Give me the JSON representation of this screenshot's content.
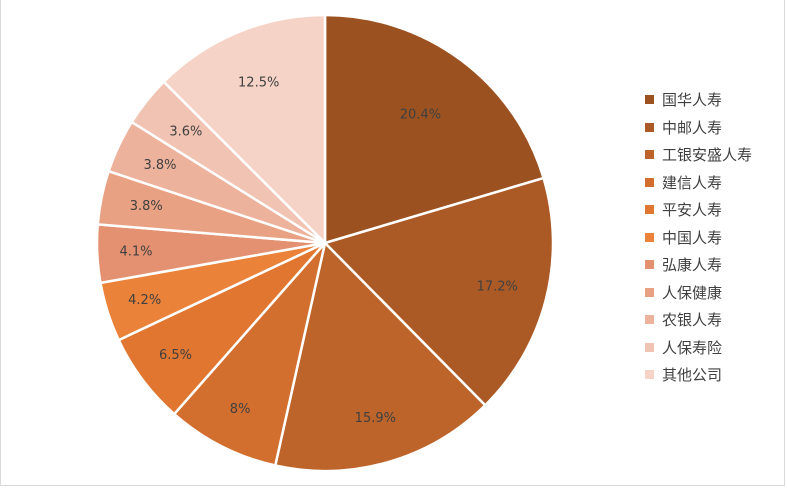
{
  "chart_data": {
    "type": "pie",
    "title": "",
    "start_angle_deg": 0,
    "direction": "clockwise",
    "legend_position": "right",
    "slices": [
      {
        "name": "国华人寿",
        "value": 20.4,
        "label": "20.4%",
        "color": "#9C5220"
      },
      {
        "name": "中邮人寿",
        "value": 17.2,
        "label": "17.2%",
        "color": "#AC5A25"
      },
      {
        "name": "工银安盛人寿",
        "value": 15.9,
        "label": "15.9%",
        "color": "#BC6429"
      },
      {
        "name": "建信人寿",
        "value": 8,
        "label": "8%",
        "color": "#D26F2E"
      },
      {
        "name": "平安人寿",
        "value": 6.5,
        "label": "6.5%",
        "color": "#E07630"
      },
      {
        "name": "中国人寿",
        "value": 4.2,
        "label": "4.2%",
        "color": "#EA8239"
      },
      {
        "name": "弘康人寿",
        "value": 4.1,
        "label": "4.1%",
        "color": "#E39170"
      },
      {
        "name": "人保健康",
        "value": 3.8,
        "label": "3.8%",
        "color": "#E8A283"
      },
      {
        "name": "农银人寿",
        "value": 3.8,
        "label": "3.8%",
        "color": "#EDB29C"
      },
      {
        "name": "人保寿险",
        "value": 3.6,
        "label": "3.6%",
        "color": "#F1C3B2"
      },
      {
        "name": "其他公司",
        "value": 12.5,
        "label": "12.5%",
        "color": "#F6D3C7"
      }
    ]
  }
}
